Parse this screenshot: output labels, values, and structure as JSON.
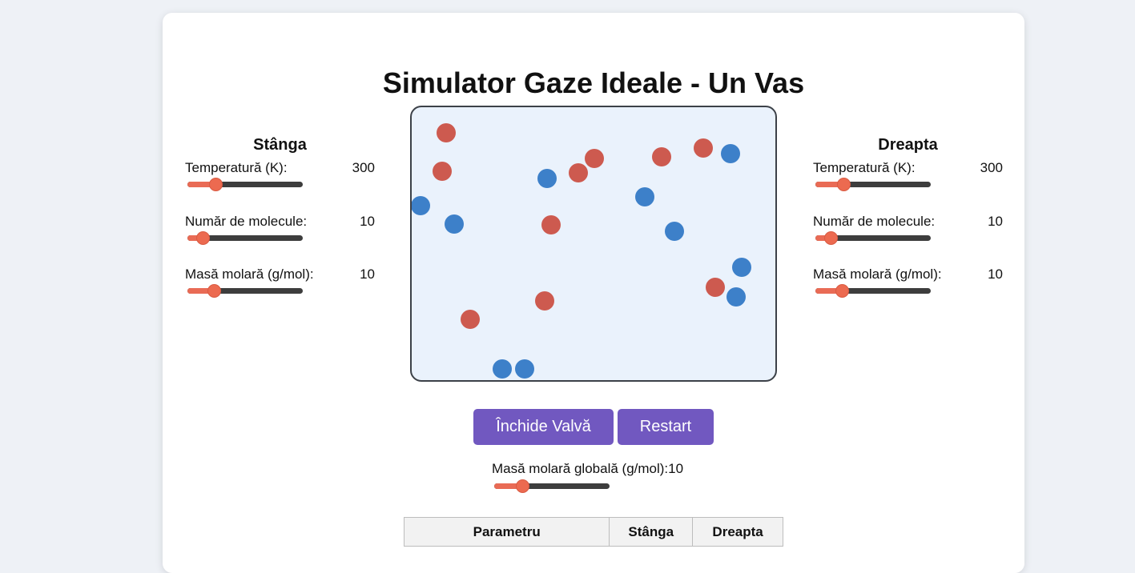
{
  "title": "Simulator Gaze Ideale - Un Vas",
  "left_panel": {
    "title": "Stânga",
    "controls": [
      {
        "label": "Temperatură (K):",
        "value": "300",
        "fraction": 0.24
      },
      {
        "label": "Număr de molecule:",
        "value": "10",
        "fraction": 0.13
      },
      {
        "label": "Masă molară (g/mol):",
        "value": "10",
        "fraction": 0.23
      }
    ]
  },
  "right_panel": {
    "title": "Dreapta",
    "controls": [
      {
        "label": "Temperatură (K):",
        "value": "300",
        "fraction": 0.24
      },
      {
        "label": "Număr de molecule:",
        "value": "10",
        "fraction": 0.13
      },
      {
        "label": "Masă molară (g/mol):",
        "value": "10",
        "fraction": 0.23
      }
    ]
  },
  "buttons": {
    "valve_label": "Închide Valvă",
    "restart_label": "Restart"
  },
  "global_mass": {
    "label": "Masă molară globală (g/mol):",
    "value": "10",
    "fraction": 0.24
  },
  "table": {
    "headers": [
      "Parametru",
      "Stânga",
      "Dreapta"
    ]
  },
  "colors": {
    "left_molecule": "#cd5a4f",
    "right_molecule": "#3d80c9",
    "button": "#7158c0",
    "slider_thumb": "#ec6a50"
  }
}
